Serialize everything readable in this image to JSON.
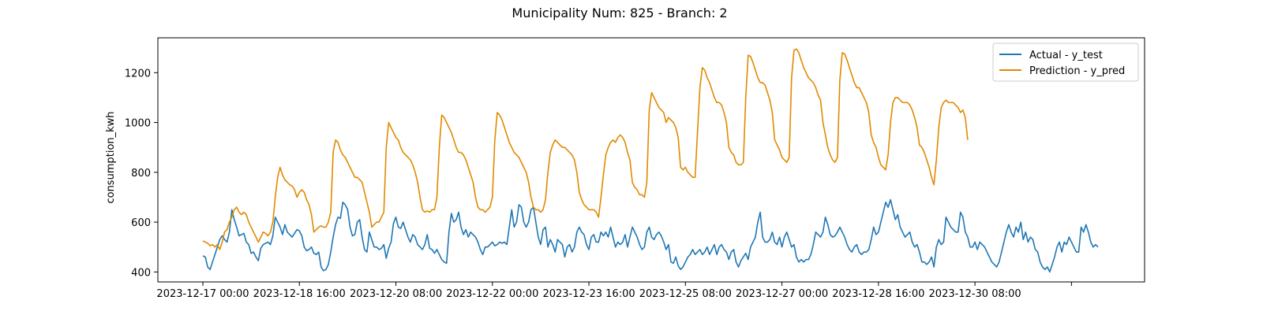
{
  "chart_data": {
    "type": "line",
    "title": "Municipality Num: 825 - Branch: 2",
    "xlabel": "",
    "ylabel": "consumption_kwh",
    "ylim": [
      360,
      1340
    ],
    "yticks": [
      400,
      600,
      800,
      1000,
      1200
    ],
    "xtick_labels": [
      "2023-12-17 00:00",
      "2023-12-18 16:00",
      "2023-12-20 08:00",
      "2023-12-22 00:00",
      "2023-12-23 16:00",
      "2023-12-25 08:00",
      "2023-12-27 00:00",
      "2023-12-28 16:00",
      "2023-12-30 08:00",
      ""
    ],
    "x_start": "2023-12-17 00:00",
    "x_step_hours": 1,
    "grid": false,
    "legend_position": "top-right",
    "series": [
      {
        "name": "Actual - y_test",
        "color": "#1f77b4",
        "values": [
          465,
          460,
          420,
          410,
          440,
          470,
          500,
          530,
          545,
          530,
          520,
          560,
          650,
          610,
          580,
          545,
          550,
          555,
          520,
          510,
          475,
          480,
          460,
          445,
          495,
          510,
          515,
          520,
          510,
          545,
          620,
          600,
          580,
          550,
          590,
          560,
          550,
          540,
          555,
          570,
          565,
          545,
          500,
          485,
          490,
          500,
          475,
          470,
          480,
          420,
          405,
          410,
          430,
          480,
          540,
          590,
          620,
          615,
          680,
          670,
          650,
          580,
          545,
          550,
          600,
          610,
          540,
          490,
          480,
          560,
          530,
          500,
          500,
          490,
          495,
          510,
          455,
          495,
          520,
          595,
          620,
          580,
          575,
          600,
          570,
          540,
          520,
          550,
          540,
          510,
          500,
          490,
          510,
          550,
          495,
          490,
          475,
          490,
          470,
          450,
          440,
          435,
          560,
          635,
          600,
          610,
          640,
          580,
          550,
          570,
          540,
          560,
          550,
          540,
          520,
          490,
          470,
          500,
          500,
          510,
          520,
          505,
          510,
          520,
          515,
          520,
          510,
          580,
          650,
          580,
          600,
          670,
          660,
          600,
          580,
          600,
          650,
          660,
          600,
          540,
          510,
          570,
          580,
          500,
          530,
          510,
          480,
          530,
          520,
          510,
          460,
          500,
          510,
          480,
          500,
          560,
          580,
          560,
          550,
          510,
          490,
          540,
          550,
          520,
          520,
          560,
          545,
          560,
          540,
          580,
          540,
          500,
          520,
          510,
          520,
          550,
          500,
          540,
          580,
          560,
          540,
          510,
          490,
          500,
          560,
          580,
          540,
          530,
          550,
          560,
          545,
          520,
          490,
          510,
          440,
          435,
          460,
          425,
          410,
          420,
          440,
          460,
          470,
          490,
          470,
          480,
          490,
          470,
          480,
          500,
          470,
          490,
          510,
          470,
          500,
          510,
          490,
          480,
          450,
          480,
          490,
          440,
          420,
          445,
          460,
          475,
          450,
          500,
          520,
          540,
          600,
          640,
          540,
          520,
          520,
          530,
          560,
          520,
          510,
          540,
          500,
          540,
          560,
          530,
          500,
          510,
          460,
          440,
          450,
          440,
          450,
          450,
          470,
          510,
          560,
          550,
          540,
          560,
          620,
          590,
          550,
          540,
          545,
          560,
          580,
          560,
          540,
          510,
          490,
          480,
          500,
          510,
          480,
          470,
          480,
          480,
          490,
          530,
          580,
          550,
          560,
          600,
          640,
          680,
          660,
          690,
          650,
          610,
          630,
          580,
          560,
          540,
          550,
          560,
          520,
          500,
          510,
          480,
          440,
          440,
          430,
          440,
          460,
          420,
          500,
          530,
          510,
          520,
          620,
          600,
          580,
          570,
          560,
          560,
          640,
          620,
          560,
          540,
          500,
          500,
          520,
          490,
          520,
          510,
          500,
          480,
          460,
          440,
          430,
          420,
          440,
          480,
          520,
          560,
          590,
          560,
          540,
          580,
          560,
          600,
          530,
          560,
          520,
          540,
          530,
          490,
          480,
          440,
          420,
          410,
          420,
          400,
          430,
          460,
          500,
          520,
          480,
          520,
          510,
          540,
          520,
          500,
          480,
          480,
          580,
          560,
          590,
          560,
          520,
          500,
          510,
          500
        ]
      },
      {
        "name": "Prediction - y_pred",
        "color": "#e08a00",
        "values": [
          525,
          520,
          515,
          505,
          510,
          500,
          510,
          490,
          520,
          560,
          570,
          600,
          620,
          650,
          660,
          640,
          630,
          640,
          630,
          600,
          580,
          560,
          540,
          520,
          540,
          560,
          555,
          545,
          560,
          600,
          700,
          780,
          820,
          790,
          770,
          760,
          750,
          745,
          730,
          700,
          720,
          730,
          720,
          690,
          670,
          630,
          560,
          570,
          580,
          585,
          580,
          580,
          600,
          640,
          880,
          930,
          920,
          890,
          870,
          860,
          840,
          820,
          800,
          780,
          780,
          770,
          760,
          720,
          680,
          640,
          580,
          590,
          600,
          600,
          620,
          640,
          900,
          1000,
          980,
          960,
          940,
          930,
          900,
          880,
          870,
          860,
          850,
          830,
          800,
          760,
          700,
          650,
          640,
          645,
          640,
          650,
          650,
          700,
          900,
          1030,
          1020,
          1000,
          980,
          960,
          930,
          900,
          880,
          880,
          870,
          850,
          820,
          790,
          760,
          700,
          660,
          650,
          650,
          640,
          650,
          660,
          700,
          930,
          1040,
          1030,
          1010,
          980,
          950,
          920,
          900,
          880,
          870,
          860,
          840,
          820,
          800,
          760,
          700,
          660,
          650,
          650,
          640,
          650,
          690,
          800,
          880,
          910,
          930,
          920,
          910,
          900,
          900,
          890,
          880,
          870,
          850,
          800,
          720,
          690,
          670,
          660,
          650,
          650,
          650,
          640,
          620,
          700,
          790,
          870,
          900,
          920,
          930,
          920,
          940,
          950,
          940,
          920,
          880,
          850,
          760,
          740,
          730,
          710,
          710,
          700,
          760,
          1050,
          1120,
          1100,
          1080,
          1060,
          1050,
          1040,
          1000,
          1020,
          1010,
          1000,
          980,
          940,
          820,
          810,
          820,
          800,
          790,
          780,
          780,
          960,
          1140,
          1220,
          1210,
          1180,
          1160,
          1130,
          1100,
          1080,
          1080,
          1070,
          1040,
          1000,
          900,
          880,
          870,
          840,
          830,
          830,
          840,
          1100,
          1270,
          1265,
          1240,
          1210,
          1180,
          1160,
          1160,
          1150,
          1120,
          1090,
          1040,
          930,
          910,
          890,
          860,
          850,
          840,
          860,
          1180,
          1290,
          1295,
          1280,
          1250,
          1220,
          1200,
          1180,
          1170,
          1160,
          1140,
          1110,
          1090,
          1000,
          950,
          900,
          870,
          850,
          840,
          860,
          1170,
          1280,
          1275,
          1250,
          1220,
          1190,
          1160,
          1140,
          1140,
          1120,
          1100,
          1080,
          1040,
          950,
          920,
          900,
          860,
          830,
          820,
          810,
          870,
          1000,
          1080,
          1100,
          1100,
          1090,
          1080,
          1080,
          1080,
          1070,
          1050,
          1020,
          980,
          910,
          900,
          880,
          850,
          820,
          780,
          750,
          850,
          980,
          1060,
          1080,
          1090,
          1080,
          1080,
          1080,
          1070,
          1060,
          1040,
          1050,
          1020,
          930
        ]
      }
    ]
  }
}
